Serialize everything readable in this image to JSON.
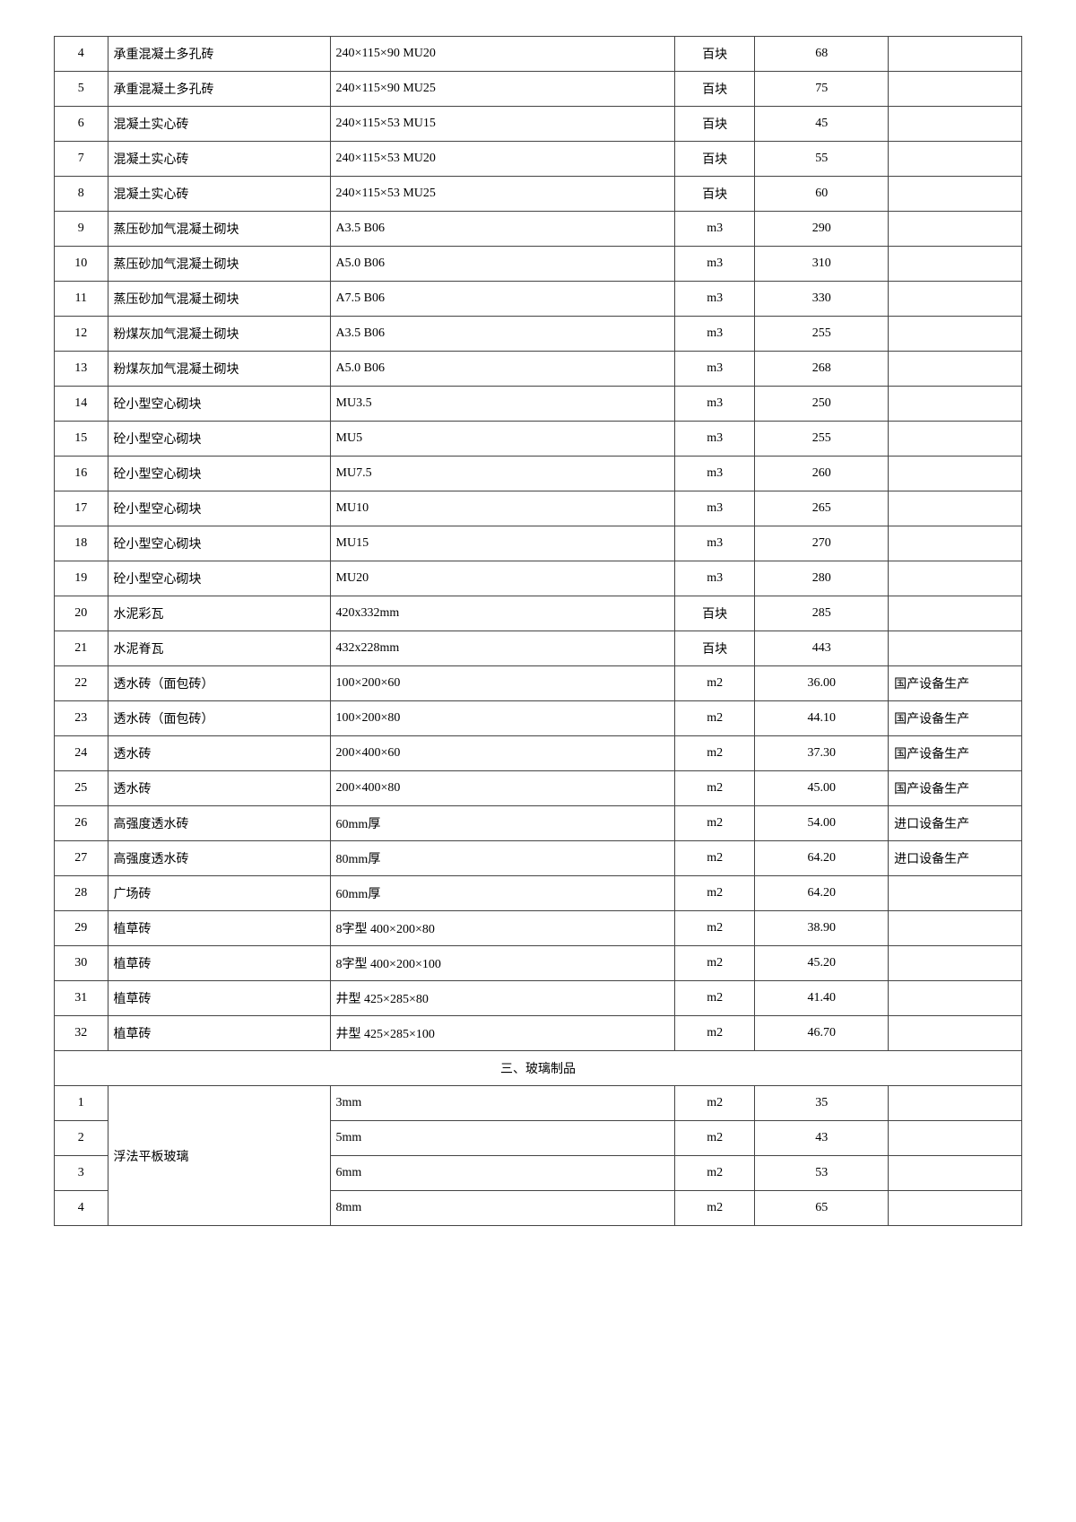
{
  "table1": {
    "rows": [
      {
        "idx": "4",
        "name": "承重混凝土多孔砖",
        "spec": "240×115×90 MU20",
        "unit": "百块",
        "price": "68",
        "note": ""
      },
      {
        "idx": "5",
        "name": "承重混凝土多孔砖",
        "spec": "240×115×90 MU25",
        "unit": "百块",
        "price": "75",
        "note": ""
      },
      {
        "idx": "6",
        "name": "混凝土实心砖",
        "spec": "240×115×53 MU15",
        "unit": "百块",
        "price": "45",
        "note": ""
      },
      {
        "idx": "7",
        "name": "混凝土实心砖",
        "spec": "240×115×53 MU20",
        "unit": "百块",
        "price": "55",
        "note": ""
      },
      {
        "idx": "8",
        "name": "混凝土实心砖",
        "spec": "240×115×53 MU25",
        "unit": "百块",
        "price": "60",
        "note": ""
      },
      {
        "idx": "9",
        "name": "蒸压砂加气混凝土砌块",
        "spec": "A3.5 B06",
        "unit": "m3",
        "price": "290",
        "note": ""
      },
      {
        "idx": "10",
        "name": "蒸压砂加气混凝土砌块",
        "spec": "A5.0 B06",
        "unit": "m3",
        "price": "310",
        "note": ""
      },
      {
        "idx": "11",
        "name": "蒸压砂加气混凝土砌块",
        "spec": "A7.5 B06",
        "unit": "m3",
        "price": "330",
        "note": ""
      },
      {
        "idx": "12",
        "name": "粉煤灰加气混凝土砌块",
        "spec": "A3.5 B06",
        "unit": "m3",
        "price": "255",
        "note": ""
      },
      {
        "idx": "13",
        "name": "粉煤灰加气混凝土砌块",
        "spec": "A5.0 B06",
        "unit": "m3",
        "price": "268",
        "note": ""
      },
      {
        "idx": "14",
        "name": "砼小型空心砌块",
        "spec": "MU3.5",
        "unit": "m3",
        "price": "250",
        "note": ""
      },
      {
        "idx": "15",
        "name": "砼小型空心砌块",
        "spec": "MU5",
        "unit": "m3",
        "price": "255",
        "note": ""
      },
      {
        "idx": "16",
        "name": "砼小型空心砌块",
        "spec": "MU7.5",
        "unit": "m3",
        "price": "260",
        "note": ""
      },
      {
        "idx": "17",
        "name": "砼小型空心砌块",
        "spec": "MU10",
        "unit": "m3",
        "price": "265",
        "note": ""
      },
      {
        "idx": "18",
        "name": "砼小型空心砌块",
        "spec": "MU15",
        "unit": "m3",
        "price": "270",
        "note": ""
      },
      {
        "idx": "19",
        "name": "砼小型空心砌块",
        "spec": "MU20",
        "unit": "m3",
        "price": "280",
        "note": ""
      },
      {
        "idx": "20",
        "name": "水泥彩瓦",
        "spec": "420x332mm",
        "unit": "百块",
        "price": "285",
        "note": ""
      },
      {
        "idx": "21",
        "name": "水泥脊瓦",
        "spec": "432x228mm",
        "unit": "百块",
        "price": "443",
        "note": ""
      },
      {
        "idx": "22",
        "name": "透水砖（面包砖）",
        "spec": "100×200×60",
        "unit": "m2",
        "price": "36.00",
        "note": "国产设备生产"
      },
      {
        "idx": "23",
        "name": "透水砖（面包砖）",
        "spec": "100×200×80",
        "unit": "m2",
        "price": "44.10",
        "note": "国产设备生产"
      },
      {
        "idx": "24",
        "name": "透水砖",
        "spec": "200×400×60",
        "unit": "m2",
        "price": "37.30",
        "note": "国产设备生产"
      },
      {
        "idx": "25",
        "name": "透水砖",
        "spec": "200×400×80",
        "unit": "m2",
        "price": "45.00",
        "note": "国产设备生产"
      },
      {
        "idx": "26",
        "name": "高强度透水砖",
        "spec": "60mm厚",
        "unit": "m2",
        "price": "54.00",
        "note": "进口设备生产"
      },
      {
        "idx": "27",
        "name": "高强度透水砖",
        "spec": "80mm厚",
        "unit": "m2",
        "price": "64.20",
        "note": "进口设备生产"
      },
      {
        "idx": "28",
        "name": "广场砖",
        "spec": "60mm厚",
        "unit": "m2",
        "price": "64.20",
        "note": ""
      },
      {
        "idx": "29",
        "name": "植草砖",
        "spec": "8字型 400×200×80",
        "unit": "m2",
        "price": "38.90",
        "note": ""
      },
      {
        "idx": "30",
        "name": "植草砖",
        "spec": "8字型 400×200×100",
        "unit": "m2",
        "price": "45.20",
        "note": ""
      },
      {
        "idx": "31",
        "name": "植草砖",
        "spec": "井型 425×285×80",
        "unit": "m2",
        "price": "41.40",
        "note": ""
      },
      {
        "idx": "32",
        "name": "植草砖",
        "spec": "井型 425×285×100",
        "unit": "m2",
        "price": "46.70",
        "note": ""
      }
    ]
  },
  "section2_title": "三、玻璃制品",
  "table2": {
    "merged_name": "浮法平板玻璃",
    "rows": [
      {
        "idx": "1",
        "spec": "3mm",
        "unit": "m2",
        "price": "35",
        "note": ""
      },
      {
        "idx": "2",
        "spec": "5mm",
        "unit": "m2",
        "price": "43",
        "note": ""
      },
      {
        "idx": "3",
        "spec": "6mm",
        "unit": "m2",
        "price": "53",
        "note": ""
      },
      {
        "idx": "4",
        "spec": "8mm",
        "unit": "m2",
        "price": "65",
        "note": ""
      }
    ]
  }
}
